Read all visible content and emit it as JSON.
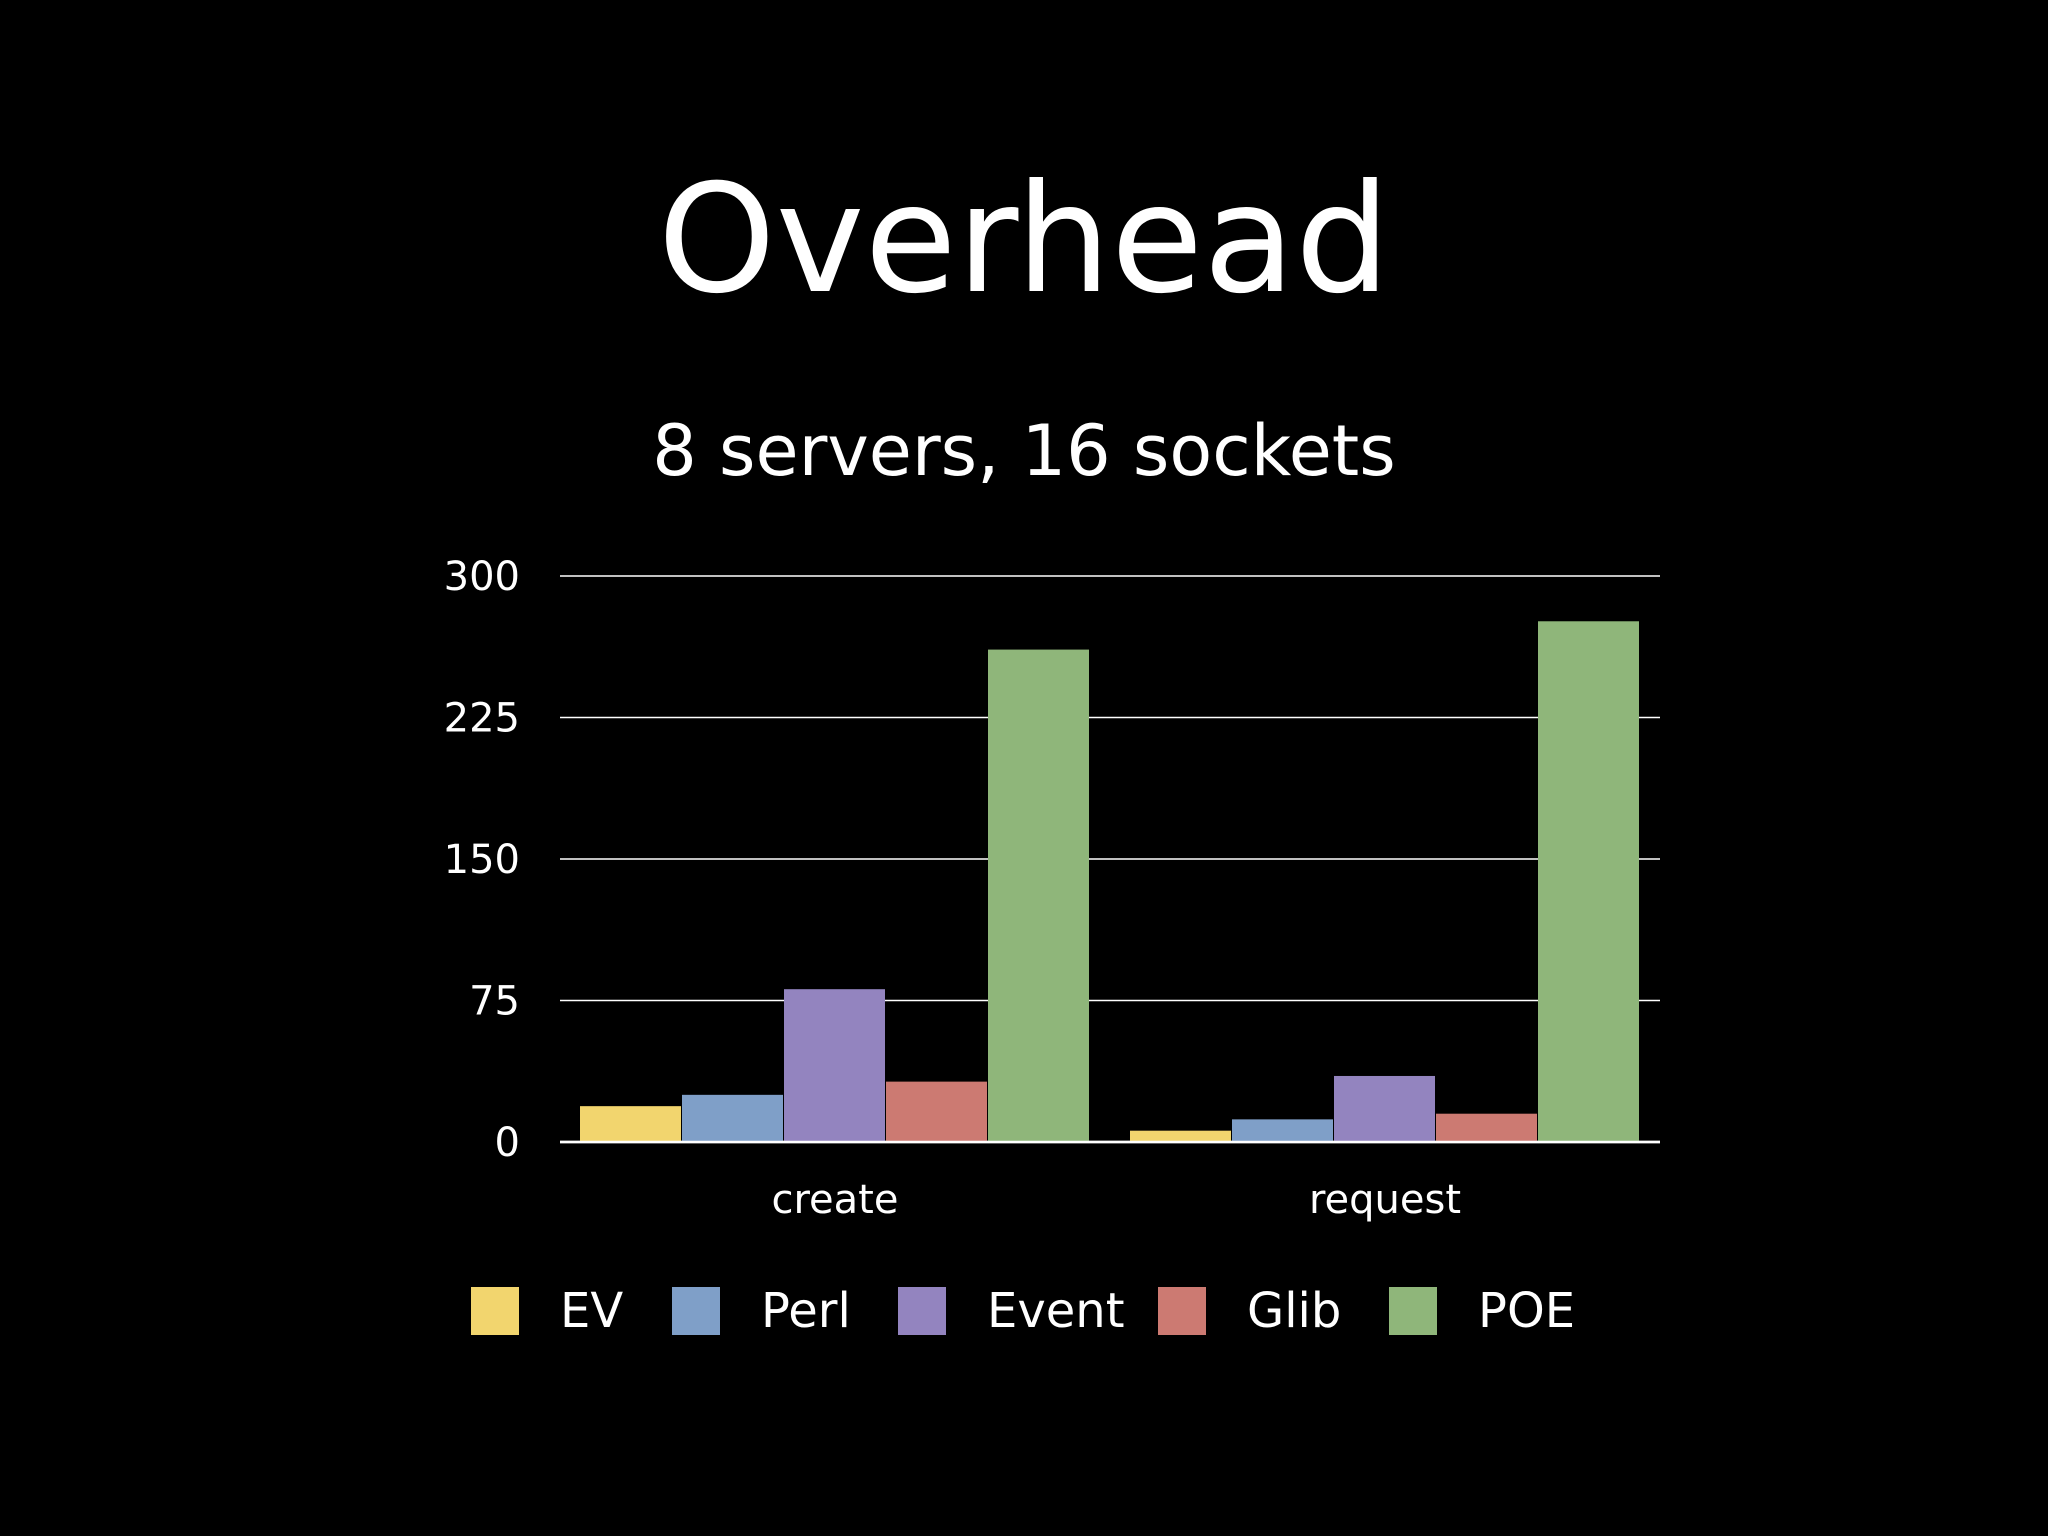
{
  "slide": {
    "title": "Overhead"
  },
  "chart_data": {
    "type": "bar",
    "title": "8 servers, 16 sockets",
    "xlabel": "",
    "ylabel": "",
    "categories": [
      "create",
      "request"
    ],
    "yticks": [
      "0",
      "75",
      "150",
      "225",
      "300"
    ],
    "ylim": [
      0,
      300
    ],
    "grid": true,
    "legend_position": "bottom",
    "series": [
      {
        "name": "EV",
        "color": "#f2d56e",
        "values": [
          19,
          6
        ]
      },
      {
        "name": "Perl",
        "color": "#7f9fc8",
        "values": [
          25,
          12
        ]
      },
      {
        "name": "Event",
        "color": "#9384bf",
        "values": [
          81,
          35
        ]
      },
      {
        "name": "Glib",
        "color": "#cc7a72",
        "values": [
          32,
          15
        ]
      },
      {
        "name": "POE",
        "color": "#8fb67a",
        "values": [
          261,
          276
        ]
      }
    ]
  }
}
